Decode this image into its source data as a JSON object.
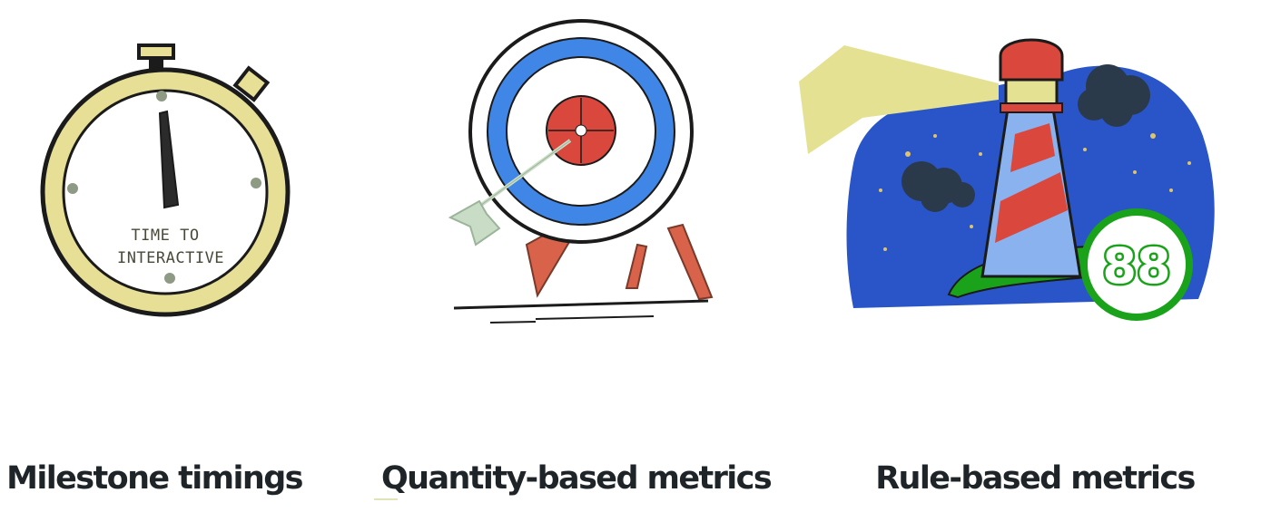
{
  "illustrations": [
    {
      "id": "stopwatch",
      "icon": "stopwatch-icon",
      "dial_text_line1": "TIME TO",
      "dial_text_line2": "INTERACTIVE",
      "colors": {
        "ring": "#e6df95",
        "outline": "#1b1b1b",
        "dots": "#8f9a84"
      }
    },
    {
      "id": "target",
      "icon": "target-icon",
      "colors": {
        "blue": "#3f86e6",
        "red": "#d9473d",
        "arrow": "#c9dcc5",
        "legs": "#d8624a"
      }
    },
    {
      "id": "lighthouse",
      "icon": "lighthouse-icon",
      "score": "88",
      "colors": {
        "sky": "#2a55c8",
        "beam": "#e4e292",
        "stripe_red": "#d9473d",
        "stripe_blue": "#8ab2ee",
        "hill": "#1aa31a"
      }
    }
  ],
  "captions": {
    "milestone": "Milestone timings",
    "quantity": "Quantity-based metrics",
    "rule": "Rule-based metrics"
  }
}
